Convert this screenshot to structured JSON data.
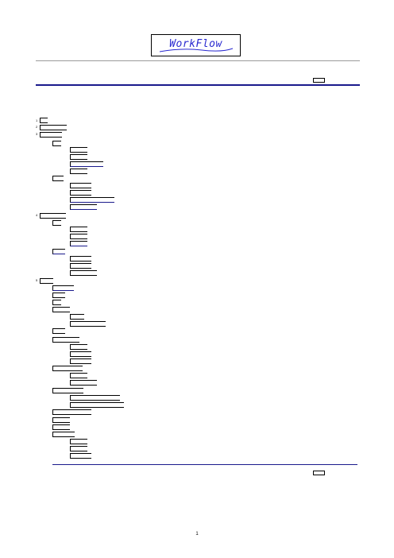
{
  "header": {
    "logo_text": "WorkFlow"
  },
  "outline": {
    "numbers": [
      "1",
      "2",
      "3",
      "4",
      "5"
    ]
  },
  "footer": {
    "page_number": "1"
  },
  "colors": {
    "accent": "#1a1a8c",
    "logo_text": "#2a2ad0",
    "rule_gray": "#9a9a9a"
  }
}
